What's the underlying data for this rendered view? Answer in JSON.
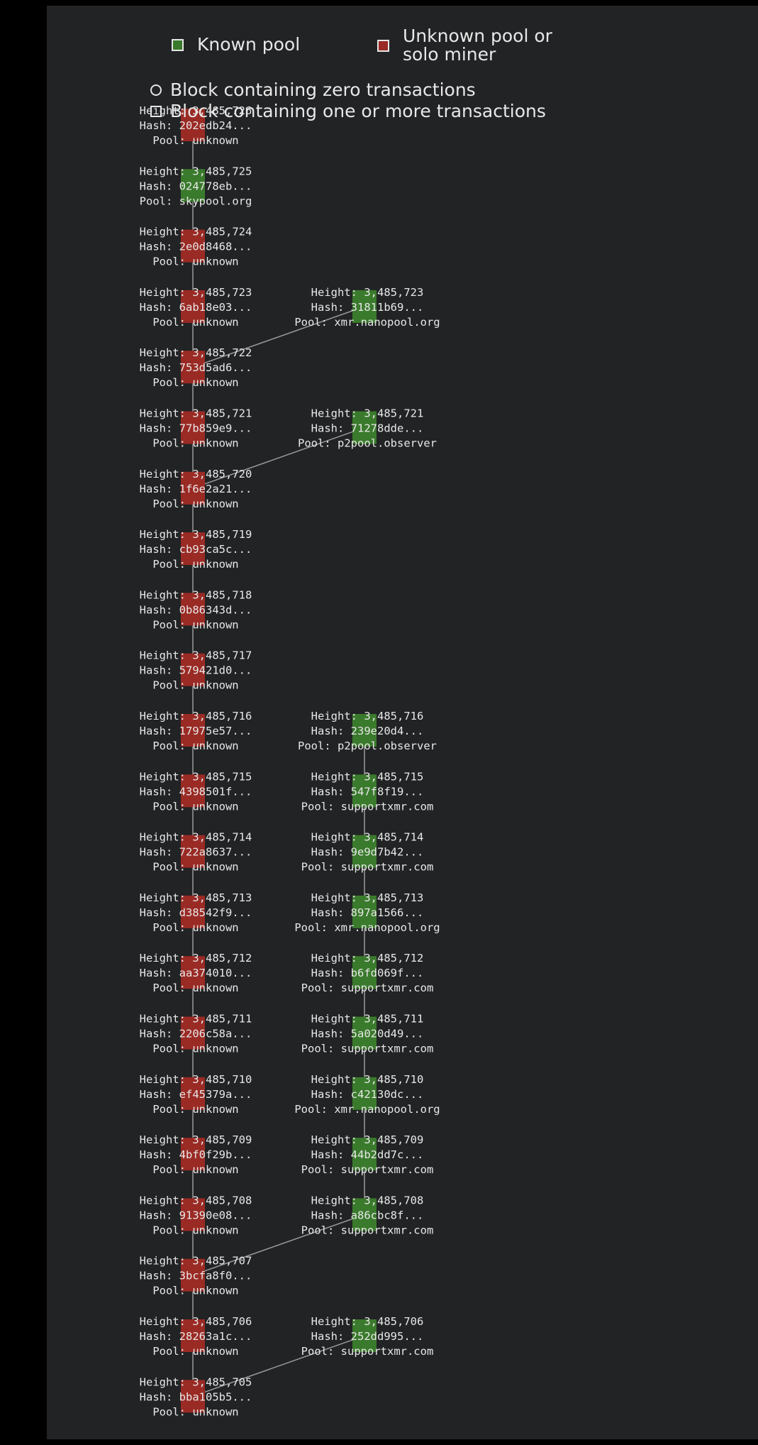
{
  "legend": {
    "known_pool": "Known pool",
    "unknown_pool": "Unknown pool or solo miner",
    "unknown_line1": "Unknown pool or",
    "unknown_line2": "solo miner",
    "zero_tx": "Block containing zero transactions",
    "one_or_more_tx": "Block containing one or more transactions",
    "zero_tx_shape": "circle",
    "one_or_more_tx_shape": "square"
  },
  "colors": {
    "background": "#222325",
    "known_pool": "#3a7a2c",
    "unknown_pool": "#9a2a24",
    "edge": "#9a9a9a",
    "text": "#e8e8e8"
  },
  "labels": {
    "height": "Height:",
    "hash": "Hash:",
    "pool": "Pool:"
  },
  "main_chain": [
    {
      "height": "3,485,726",
      "hash": "202edb24...",
      "pool": "unknown",
      "known": false
    },
    {
      "height": "3,485,725",
      "hash": "024778eb...",
      "pool": "skypool.org",
      "known": true
    },
    {
      "height": "3,485,724",
      "hash": "2e0d8468...",
      "pool": "unknown",
      "known": false
    },
    {
      "height": "3,485,723",
      "hash": "6ab18e03...",
      "pool": "unknown",
      "known": false
    },
    {
      "height": "3,485,722",
      "hash": "753d5ad6...",
      "pool": "unknown",
      "known": false
    },
    {
      "height": "3,485,721",
      "hash": "77b859e9...",
      "pool": "unknown",
      "known": false
    },
    {
      "height": "3,485,720",
      "hash": "1f6e2a21...",
      "pool": "unknown",
      "known": false
    },
    {
      "height": "3,485,719",
      "hash": "cb93ca5c...",
      "pool": "unknown",
      "known": false
    },
    {
      "height": "3,485,718",
      "hash": "0b86343d...",
      "pool": "unknown",
      "known": false
    },
    {
      "height": "3,485,717",
      "hash": "579421d0...",
      "pool": "unknown",
      "known": false
    },
    {
      "height": "3,485,716",
      "hash": "17975e57...",
      "pool": "unknown",
      "known": false
    },
    {
      "height": "3,485,715",
      "hash": "4398501f...",
      "pool": "unknown",
      "known": false
    },
    {
      "height": "3,485,714",
      "hash": "722a8637...",
      "pool": "unknown",
      "known": false
    },
    {
      "height": "3,485,713",
      "hash": "d38542f9...",
      "pool": "unknown",
      "known": false
    },
    {
      "height": "3,485,712",
      "hash": "aa374010...",
      "pool": "unknown",
      "known": false
    },
    {
      "height": "3,485,711",
      "hash": "2206c58a...",
      "pool": "unknown",
      "known": false
    },
    {
      "height": "3,485,710",
      "hash": "ef45379a...",
      "pool": "unknown",
      "known": false
    },
    {
      "height": "3,485,709",
      "hash": "4bf0f29b...",
      "pool": "unknown",
      "known": false
    },
    {
      "height": "3,485,708",
      "hash": "91390e08...",
      "pool": "unknown",
      "known": false
    },
    {
      "height": "3,485,707",
      "hash": "3bcfa8f0...",
      "pool": "unknown",
      "known": false
    },
    {
      "height": "3,485,706",
      "hash": "28263a1c...",
      "pool": "unknown",
      "known": false
    },
    {
      "height": "3,485,705",
      "hash": "bba105b5...",
      "pool": "unknown",
      "known": false
    }
  ],
  "side_chain": [
    {
      "height": "3,485,723",
      "hash": "31811b69...",
      "pool": "xmr.nanopool.org",
      "known": true,
      "parent": "3,485,722"
    },
    {
      "height": "3,485,721",
      "hash": "71278dde...",
      "pool": "p2pool.observer",
      "known": true,
      "parent": "3,485,720"
    },
    {
      "height": "3,485,716",
      "hash": "239e20d4...",
      "pool": "p2pool.observer",
      "known": true,
      "parent": "3,485,715"
    },
    {
      "height": "3,485,715",
      "hash": "547f8f19...",
      "pool": "supportxmr.com",
      "known": true,
      "parent": "3,485,714"
    },
    {
      "height": "3,485,714",
      "hash": "9e9d7b42...",
      "pool": "supportxmr.com",
      "known": true,
      "parent": "3,485,713"
    },
    {
      "height": "3,485,713",
      "hash": "897a1566...",
      "pool": "xmr.nanopool.org",
      "known": true,
      "parent": "3,485,712"
    },
    {
      "height": "3,485,712",
      "hash": "b6fd069f...",
      "pool": "supportxmr.com",
      "known": true,
      "parent": "3,485,711"
    },
    {
      "height": "3,485,711",
      "hash": "5a020d49...",
      "pool": "supportxmr.com",
      "known": true,
      "parent": "3,485,710"
    },
    {
      "height": "3,485,710",
      "hash": "c42130dc...",
      "pool": "xmr.nanopool.org",
      "known": true,
      "parent": "3,485,709"
    },
    {
      "height": "3,485,709",
      "hash": "44b2dd7c...",
      "pool": "supportxmr.com",
      "known": true,
      "parent": "3,485,708"
    },
    {
      "height": "3,485,708",
      "hash": "a86cbc8f...",
      "pool": "supportxmr.com",
      "known": true,
      "parent": "3,485,707"
    },
    {
      "height": "3,485,706",
      "hash": "252dd995...",
      "pool": "supportxmr.com",
      "known": true,
      "parent": "3,485,705"
    }
  ]
}
